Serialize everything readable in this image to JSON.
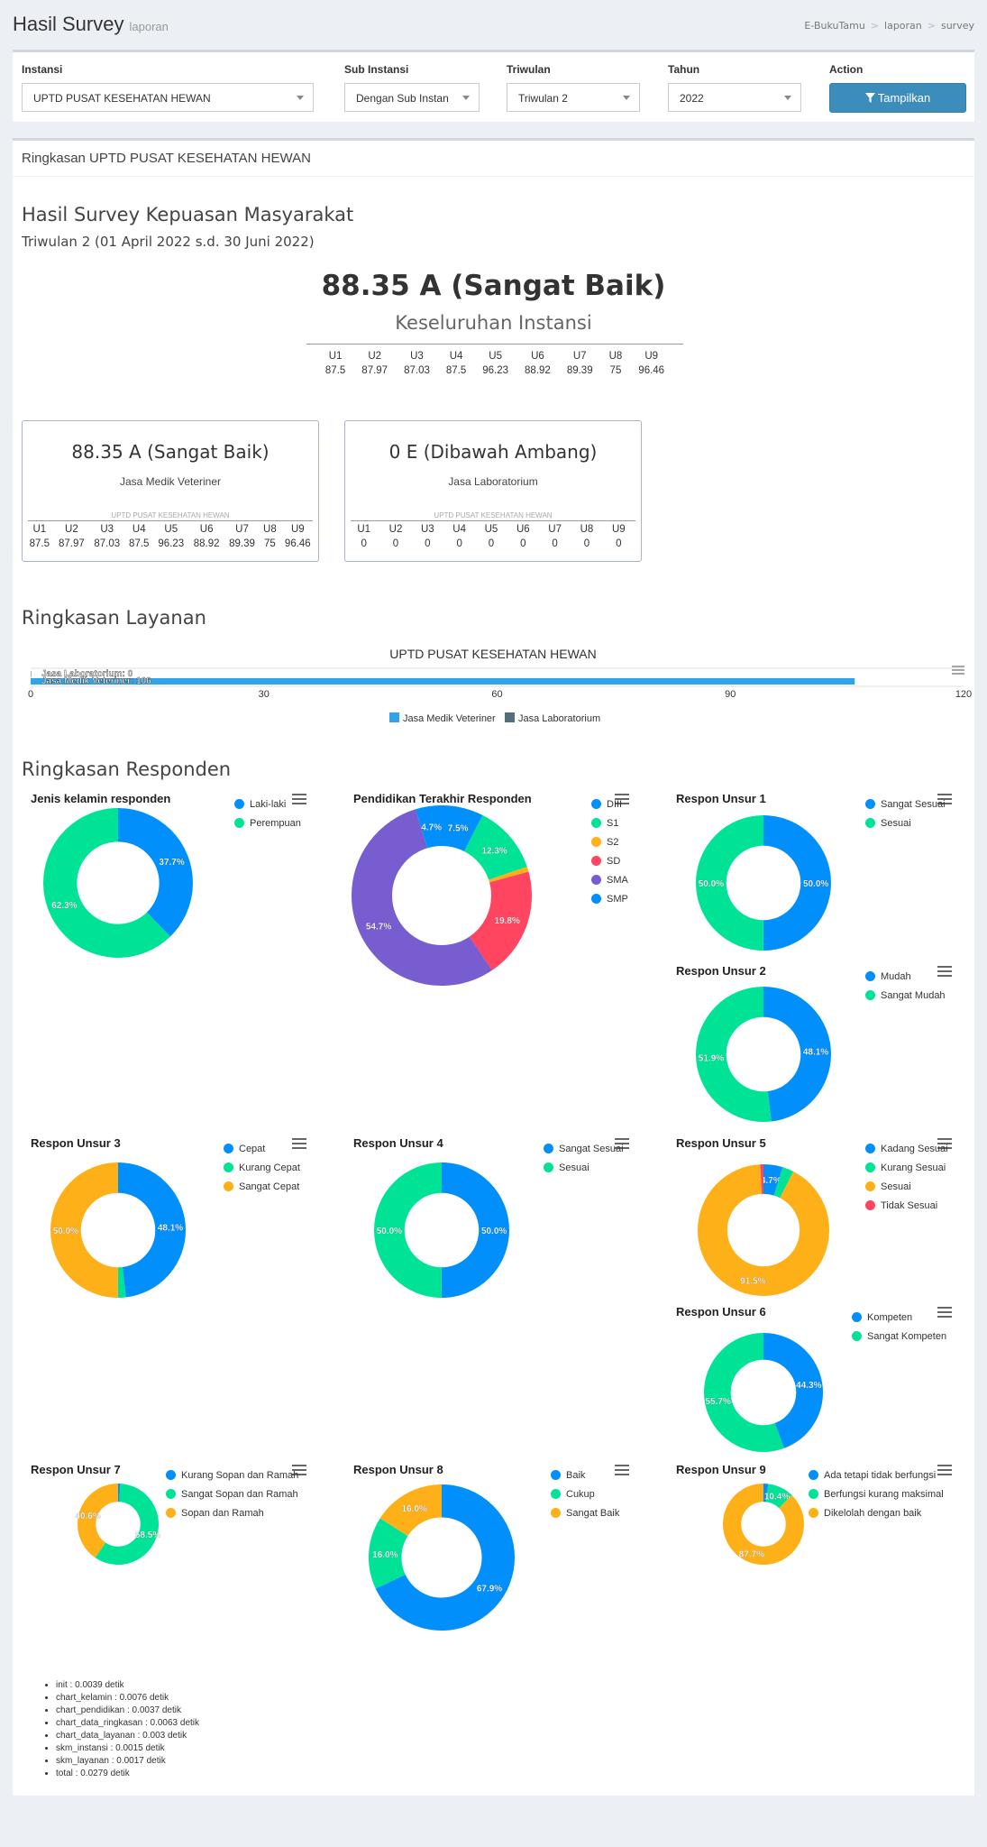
{
  "header": {
    "title": "Hasil Survey",
    "subtitle": "laporan",
    "breadcrumb": [
      "E-BukuTamu",
      "laporan",
      "survey"
    ]
  },
  "filters": {
    "instansi_label": "Instansi",
    "instansi_value": "UPTD PUSAT KESEHATAN HEWAN",
    "sub_instansi_label": "Sub Instansi",
    "sub_instansi_value": "Dengan Sub Instan",
    "triwulan_label": "Triwulan",
    "triwulan_value": "Triwulan 2",
    "tahun_label": "Tahun",
    "tahun_value": "2022",
    "action_label": "Action",
    "button_label": "Tampilkan"
  },
  "summary": {
    "box_title": "Ringkasan UPTD PUSAT KESEHATAN HEWAN",
    "section_title": "Hasil Survey Kepuasan Masyarakat",
    "period": "Triwulan 2 (01 April 2022 s.d. 30 Juni 2022)",
    "score": "88.35 A (Sangat Baik)",
    "score_caption": "Keseluruhan Instansi",
    "u_labels": [
      "U1",
      "U2",
      "U3",
      "U4",
      "U5",
      "U6",
      "U7",
      "U8",
      "U9"
    ],
    "u_values": [
      "87.5",
      "87.97",
      "87.03",
      "87.5",
      "96.23",
      "88.92",
      "89.39",
      "75",
      "96.46"
    ]
  },
  "services": [
    {
      "score": "88.35 A (Sangat Baik)",
      "name": "Jasa Medik Veteriner",
      "caption": "UPTD PUSAT KESEHATAN HEWAN",
      "u_values": [
        "87.5",
        "87.97",
        "87.03",
        "87.5",
        "96.23",
        "88.92",
        "89.39",
        "75",
        "96.46"
      ]
    },
    {
      "score": "0 E (Dibawah Ambang)",
      "name": "Jasa Laboratorium",
      "caption": "UPTD PUSAT KESEHATAN HEWAN",
      "u_values": [
        "0",
        "0",
        "0",
        "0",
        "0",
        "0",
        "0",
        "0",
        "0"
      ]
    }
  ],
  "layanan": {
    "section_title": "Ringkasan Layanan",
    "chart_title": "UPTD PUSAT KESEHATAN HEWAN",
    "bar_labels": [
      "Jasa Laboratorium: 0",
      "Jasa Medik Veteriner: 106"
    ],
    "ticks": [
      "0",
      "30",
      "60",
      "90",
      "120"
    ],
    "legend": [
      "Jasa Medik Veteriner",
      "Jasa Laboratorium"
    ]
  },
  "responden": {
    "section_title": "Ringkasan Responden"
  },
  "colors": {
    "blue": "#008ffb",
    "green": "#00e396",
    "orange": "#feb019",
    "red": "#ff4560",
    "purple": "#775dd0",
    "legend_blue": "#2fa4e7",
    "legend_dark": "#546e7a"
  },
  "chart_data": [
    {
      "type": "bar",
      "title": "UPTD PUSAT KESEHATAN HEWAN",
      "orientation": "horizontal",
      "categories": [
        "Jasa Laboratorium",
        "Jasa Medik Veteriner"
      ],
      "values": [
        0,
        106
      ],
      "xlim": [
        0,
        120
      ]
    },
    {
      "type": "pie",
      "title": "Jenis kelamin responden",
      "labels": [
        "Laki-laki",
        "Perempuan"
      ],
      "values": [
        37.7,
        62.3
      ]
    },
    {
      "type": "pie",
      "title": "Pendidikan Terakhir Responden",
      "labels": [
        "DIII",
        "S1",
        "S2",
        "SD",
        "SMA",
        "SMP"
      ],
      "values": [
        7.5,
        12.3,
        0.9,
        19.8,
        54.7,
        4.7
      ]
    },
    {
      "type": "pie",
      "title": "Respon Unsur 1",
      "labels": [
        "Sangat Sesuai",
        "Sesuai"
      ],
      "values": [
        50.0,
        50.0
      ]
    },
    {
      "type": "pie",
      "title": "Respon Unsur 2",
      "labels": [
        "Mudah",
        "Sangat Mudah"
      ],
      "values": [
        48.1,
        51.9
      ]
    },
    {
      "type": "pie",
      "title": "Respon Unsur 3",
      "labels": [
        "Cepat",
        "Kurang Cepat",
        "Sangat Cepat"
      ],
      "values": [
        48.1,
        1.9,
        50.0
      ]
    },
    {
      "type": "pie",
      "title": "Respon Unsur 4",
      "labels": [
        "Sangat Sesuai",
        "Sesuai"
      ],
      "values": [
        50.0,
        50.0
      ]
    },
    {
      "type": "pie",
      "title": "Respon Unsur 5",
      "labels": [
        "Kadang Sesuai",
        "Kurang Sesuai",
        "Sesuai",
        "Tidak Sesuai"
      ],
      "values": [
        4.7,
        2.8,
        91.5,
        0.9
      ]
    },
    {
      "type": "pie",
      "title": "Respon Unsur 6",
      "labels": [
        "Kompeten",
        "Sangat Kompeten"
      ],
      "values": [
        44.3,
        55.7
      ]
    },
    {
      "type": "pie",
      "title": "Respon Unsur 7",
      "labels": [
        "Kurang Sopan dan Ramah",
        "Sangat Sopan dan Ramah",
        "Sopan dan Ramah"
      ],
      "values": [
        0.9,
        58.5,
        40.6
      ]
    },
    {
      "type": "pie",
      "title": "Respon Unsur 8",
      "labels": [
        "Baik",
        "Cukup",
        "Sangat Baik"
      ],
      "values": [
        67.9,
        16.0,
        16.0
      ]
    },
    {
      "type": "pie",
      "title": "Respon Unsur 9",
      "labels": [
        "Ada tetapi tidak berfungsi",
        "Berfungsi kurang maksimal",
        "Dikelolah dengan baik"
      ],
      "values": [
        1.9,
        10.4,
        87.7
      ]
    }
  ],
  "timings": [
    "init : 0.0039 detik",
    "chart_kelamin : 0.0076 detik",
    "chart_pendidikan : 0.0037 detik",
    "chart_data_ringkasan : 0.0063 detik",
    "chart_data_layanan : 0.003 detik",
    "skm_instansi : 0.0015 detik",
    "skm_layanan : 0.0017 detik",
    "total : 0.0279 detik"
  ]
}
